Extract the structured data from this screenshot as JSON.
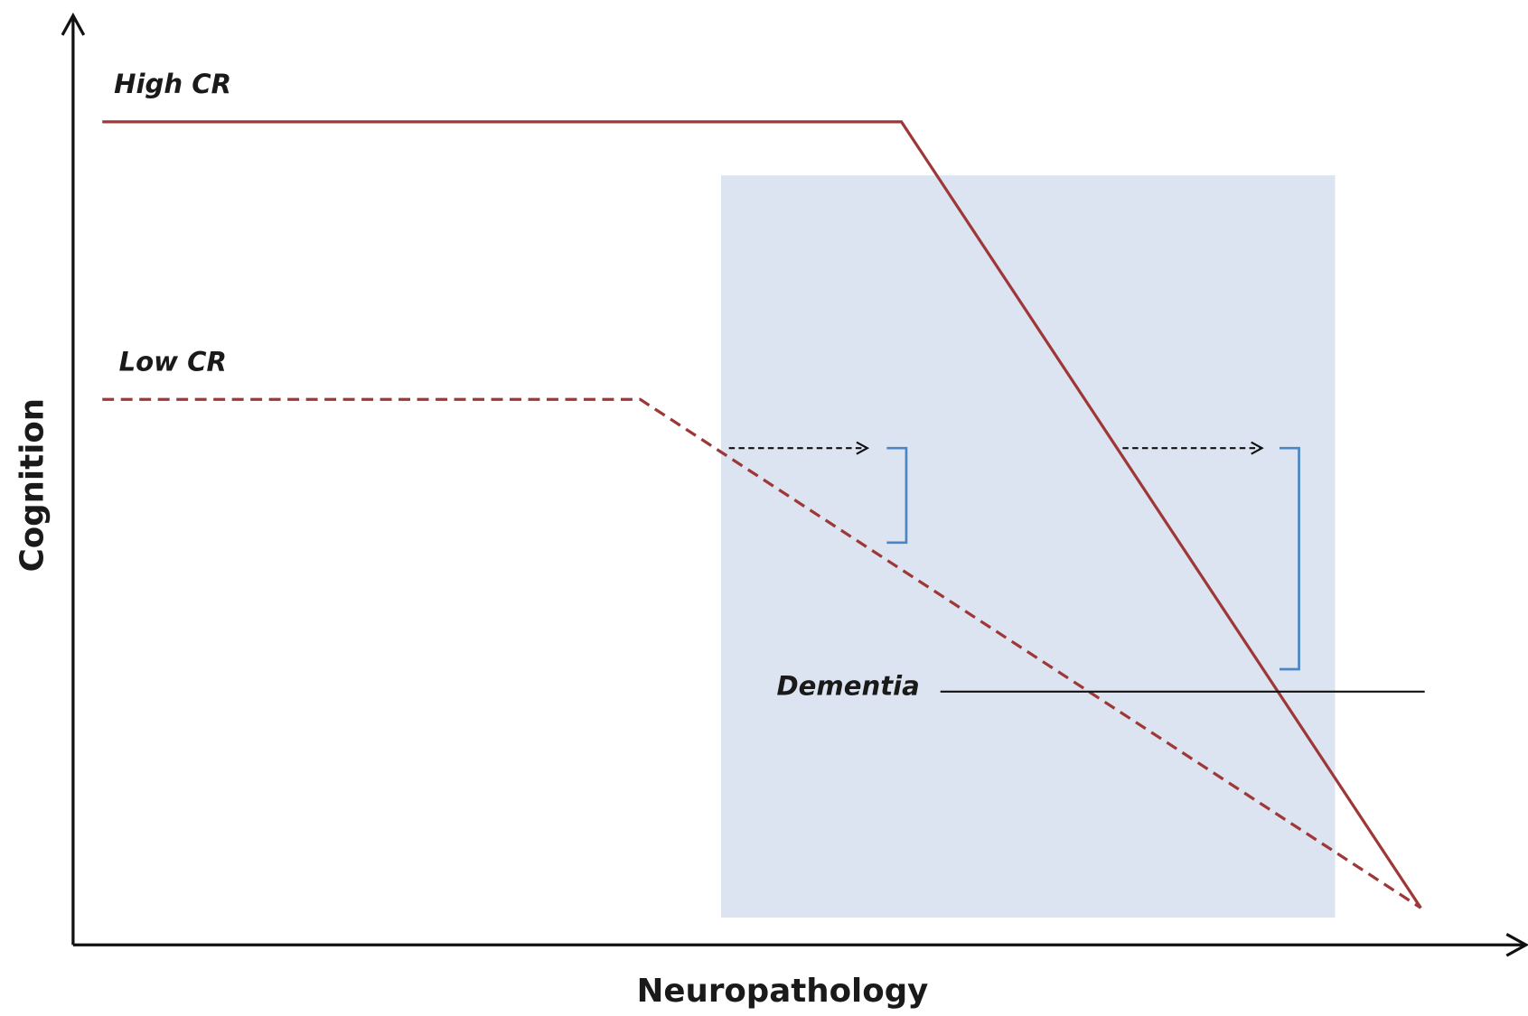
{
  "axes": {
    "y_label": "Cognition",
    "x_label": "Neuropathology"
  },
  "curves": {
    "high": {
      "label": "High CR"
    },
    "low": {
      "label": "Low CR"
    }
  },
  "threshold": {
    "label": "Dementia"
  }
}
